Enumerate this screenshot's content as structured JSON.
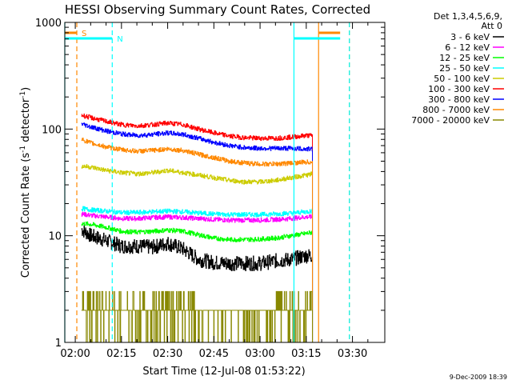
{
  "chart_data": {
    "type": "line",
    "title": "HESSI Observing Summary Count Rates, Corrected",
    "xlabel": "Start Time (12-Jul-08 01:53:22)",
    "ylabel_main": "Corrected Count Rate (s",
    "ylabel_sup1": "-1",
    "ylabel_mid": " detector",
    "ylabel_sup2": "-1",
    "ylabel_end": ")",
    "y_scale": "log",
    "ylim": [
      1,
      1000
    ],
    "xlim_minutes": [
      -3.4,
      100.5
    ],
    "x_ticks": [
      {
        "label": "02:00",
        "minutes": 0
      },
      {
        "label": "02:15",
        "minutes": 15
      },
      {
        "label": "02:30",
        "minutes": 30
      },
      {
        "label": "02:45",
        "minutes": 45
      },
      {
        "label": "03:00",
        "minutes": 60
      },
      {
        "label": "03:15",
        "minutes": 75
      },
      {
        "label": "03:30",
        "minutes": 90
      }
    ],
    "y_ticks": [
      {
        "label": "1",
        "value": 1
      },
      {
        "label": "10",
        "value": 10
      },
      {
        "label": "100",
        "value": 100
      },
      {
        "label": "1000",
        "value": 1000
      }
    ],
    "legend_header": [
      "Det 1,3,4,5,6,9,",
      "Att 0"
    ],
    "legend_placement": "right",
    "timestamp": "9-Dec-2009 18:39",
    "series": [
      {
        "name": "3 - 6 keV",
        "color": "#000000",
        "points": [
          [
            2,
            11.5
          ],
          [
            5,
            10
          ],
          [
            10,
            9
          ],
          [
            15,
            8
          ],
          [
            20,
            8
          ],
          [
            25,
            7.8
          ],
          [
            30,
            8.5
          ],
          [
            35,
            7.5
          ],
          [
            40,
            6
          ],
          [
            45,
            5.6
          ],
          [
            50,
            5.5
          ],
          [
            55,
            5.5
          ],
          [
            60,
            5.5
          ],
          [
            65,
            5.8
          ],
          [
            70,
            6
          ],
          [
            75,
            6.5
          ],
          [
            77,
            6.5
          ]
        ]
      },
      {
        "name": "6 - 12 keV",
        "color": "#ff00ff",
        "points": [
          [
            2,
            16
          ],
          [
            5,
            15.5
          ],
          [
            10,
            15
          ],
          [
            15,
            14.5
          ],
          [
            20,
            14.5
          ],
          [
            25,
            14.8
          ],
          [
            30,
            15
          ],
          [
            35,
            14.8
          ],
          [
            40,
            14.5
          ],
          [
            45,
            14.2
          ],
          [
            50,
            14
          ],
          [
            55,
            14
          ],
          [
            60,
            14
          ],
          [
            65,
            14.2
          ],
          [
            70,
            14.5
          ],
          [
            75,
            15
          ],
          [
            77,
            15
          ]
        ]
      },
      {
        "name": "12 - 25 keV",
        "color": "#00ff00",
        "points": [
          [
            2,
            13
          ],
          [
            5,
            12.8
          ],
          [
            10,
            12
          ],
          [
            15,
            11
          ],
          [
            20,
            10.8
          ],
          [
            25,
            11
          ],
          [
            30,
            11.3
          ],
          [
            35,
            11
          ],
          [
            40,
            10.2
          ],
          [
            45,
            9.5
          ],
          [
            50,
            9.2
          ],
          [
            55,
            9.2
          ],
          [
            60,
            9.3
          ],
          [
            65,
            9.5
          ],
          [
            70,
            10
          ],
          [
            75,
            10.5
          ],
          [
            77,
            10.8
          ]
        ]
      },
      {
        "name": "25 - 50 keV",
        "color": "#00ffff",
        "points": [
          [
            2,
            18
          ],
          [
            5,
            17.5
          ],
          [
            10,
            17
          ],
          [
            15,
            16.5
          ],
          [
            20,
            16.5
          ],
          [
            25,
            16.8
          ],
          [
            30,
            17
          ],
          [
            35,
            16.8
          ],
          [
            40,
            16.3
          ],
          [
            45,
            16
          ],
          [
            50,
            15.8
          ],
          [
            55,
            15.8
          ],
          [
            60,
            15.8
          ],
          [
            65,
            16
          ],
          [
            70,
            16.3
          ],
          [
            75,
            16.8
          ],
          [
            77,
            17
          ]
        ]
      },
      {
        "name": "50 - 100 keV",
        "color": "#cccc00",
        "points": [
          [
            2,
            45
          ],
          [
            5,
            44
          ],
          [
            10,
            41
          ],
          [
            15,
            39
          ],
          [
            20,
            38
          ],
          [
            25,
            39
          ],
          [
            30,
            41
          ],
          [
            35,
            39
          ],
          [
            40,
            37
          ],
          [
            45,
            35
          ],
          [
            50,
            33
          ],
          [
            55,
            32
          ],
          [
            60,
            32
          ],
          [
            65,
            33
          ],
          [
            70,
            35
          ],
          [
            75,
            37
          ],
          [
            77,
            38
          ]
        ]
      },
      {
        "name": "100 - 300 keV",
        "color": "#ff0000",
        "points": [
          [
            2,
            135
          ],
          [
            5,
            128
          ],
          [
            10,
            118
          ],
          [
            15,
            110
          ],
          [
            20,
            107
          ],
          [
            25,
            110
          ],
          [
            30,
            114
          ],
          [
            35,
            110
          ],
          [
            40,
            100
          ],
          [
            45,
            92
          ],
          [
            50,
            86
          ],
          [
            55,
            83
          ],
          [
            60,
            82
          ],
          [
            65,
            82
          ],
          [
            70,
            84
          ],
          [
            75,
            87
          ],
          [
            77,
            87
          ]
        ]
      },
      {
        "name": "300 - 800 keV",
        "color": "#0000ff",
        "points": [
          [
            2,
            112
          ],
          [
            5,
            105
          ],
          [
            10,
            96
          ],
          [
            15,
            90
          ],
          [
            20,
            87
          ],
          [
            25,
            89
          ],
          [
            30,
            92
          ],
          [
            35,
            89
          ],
          [
            40,
            82
          ],
          [
            45,
            75
          ],
          [
            50,
            70
          ],
          [
            55,
            67
          ],
          [
            60,
            66
          ],
          [
            65,
            66
          ],
          [
            70,
            66
          ],
          [
            75,
            65
          ],
          [
            77,
            65
          ]
        ]
      },
      {
        "name": "800 - 7000 keV",
        "color": "#ff8800",
        "points": [
          [
            2,
            80
          ],
          [
            5,
            74
          ],
          [
            10,
            68
          ],
          [
            15,
            64
          ],
          [
            20,
            62
          ],
          [
            25,
            63
          ],
          [
            30,
            65
          ],
          [
            35,
            63
          ],
          [
            40,
            58
          ],
          [
            45,
            54
          ],
          [
            50,
            50
          ],
          [
            55,
            48
          ],
          [
            60,
            47
          ],
          [
            65,
            47
          ],
          [
            70,
            48
          ],
          [
            75,
            49
          ],
          [
            77,
            49
          ]
        ]
      },
      {
        "name": "7000 - 20000 keV",
        "color": "#888800",
        "points": [
          [
            2,
            2
          ],
          [
            10,
            1.5
          ],
          [
            18,
            2
          ],
          [
            25,
            2.5
          ],
          [
            30,
            2.8
          ],
          [
            35,
            2
          ],
          [
            40,
            1.5
          ],
          [
            50,
            1.2
          ],
          [
            60,
            1.2
          ],
          [
            65,
            1.5
          ],
          [
            68,
            2
          ],
          [
            70,
            2.5
          ],
          [
            75,
            2.5
          ],
          [
            77,
            2
          ]
        ]
      }
    ],
    "flags": [
      {
        "label": "S",
        "color": "#ff8800",
        "row": "upper",
        "intervals": [
          [
            -3.4,
            0.5
          ],
          [
            79,
            86
          ]
        ],
        "lines": [
          0.5,
          79,
          89
        ]
      },
      {
        "label": "N",
        "color": "#00ffff",
        "row": "lower",
        "intervals": [
          [
            -3.4,
            12
          ],
          [
            71,
            86
          ]
        ],
        "lines": [
          -3.4,
          12,
          71,
          89
        ]
      }
    ]
  }
}
